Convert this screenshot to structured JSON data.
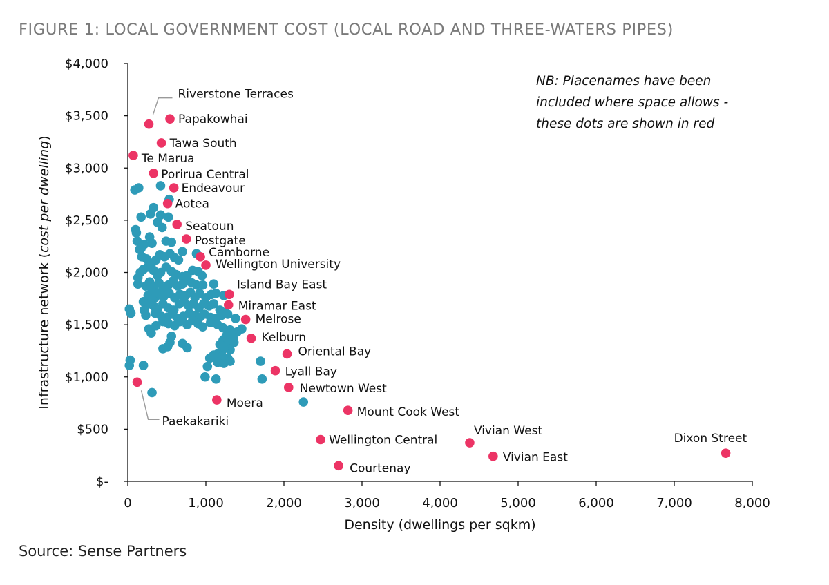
{
  "figure_title": "FIGURE 1: LOCAL GOVERNMENT COST (LOCAL ROAD AND THREE-WATERS PIPES)",
  "source": "Source: Sense Partners",
  "colors": {
    "teal": "#2e9bb8",
    "red": "#ec3465",
    "axis": "#111111",
    "leader": "#9a9a9a",
    "title": "#7a7a7a"
  },
  "chart_data": {
    "type": "scatter",
    "xlabel": "Density (dwellings per sqkm)",
    "ylabel_prefix": "Infrastructure network (",
    "ylabel_italic": "cost per dwelling",
    "ylabel_suffix": ")",
    "xlim": [
      0,
      8000
    ],
    "ylim": [
      0,
      4000
    ],
    "x_ticks": [
      0,
      1000,
      2000,
      3000,
      4000,
      5000,
      6000,
      7000,
      8000
    ],
    "x_tick_labels": [
      "0",
      "1,000",
      "2,000",
      "3,000",
      "4,000",
      "5,000",
      "6,000",
      "7,000",
      "8,000"
    ],
    "y_ticks": [
      0,
      500,
      1000,
      1500,
      2000,
      2500,
      3000,
      3500,
      4000
    ],
    "y_tick_labels": [
      "$-",
      "$500",
      "$1,000",
      "$1,500",
      "$2,000",
      "$2,500",
      "$3,000",
      "$3,500",
      "$4,000"
    ],
    "annotation_lines": [
      "NB: Placenames have been",
      "included where space allows -",
      "these dots are shown in red"
    ],
    "labelled_points": [
      {
        "name": "Riverstone Terraces",
        "x": 270,
        "y": 3420,
        "leader": true
      },
      {
        "name": "Papakowhai",
        "x": 540,
        "y": 3470
      },
      {
        "name": "Tawa South",
        "x": 430,
        "y": 3240
      },
      {
        "name": "Te Marua",
        "x": 70,
        "y": 3120
      },
      {
        "name": "Porirua Central",
        "x": 330,
        "y": 2950
      },
      {
        "name": "Endeavour",
        "x": 590,
        "y": 2810
      },
      {
        "name": "Aotea",
        "x": 510,
        "y": 2660
      },
      {
        "name": "Seatoun",
        "x": 630,
        "y": 2460
      },
      {
        "name": "Postgate",
        "x": 750,
        "y": 2320
      },
      {
        "name": "Camborne",
        "x": 930,
        "y": 2150
      },
      {
        "name": "Wellington University",
        "x": 1000,
        "y": 2070
      },
      {
        "name": "Island Bay East",
        "x": 1300,
        "y": 1790
      },
      {
        "name": "Miramar East",
        "x": 1290,
        "y": 1690
      },
      {
        "name": "Melrose",
        "x": 1510,
        "y": 1550
      },
      {
        "name": "Kelburn",
        "x": 1580,
        "y": 1370
      },
      {
        "name": "Oriental Bay",
        "x": 2040,
        "y": 1220
      },
      {
        "name": "Lyall Bay",
        "x": 1890,
        "y": 1060
      },
      {
        "name": "Newtown West",
        "x": 2060,
        "y": 900
      },
      {
        "name": "Moera",
        "x": 1140,
        "y": 780
      },
      {
        "name": "Mount Cook West",
        "x": 2820,
        "y": 680
      },
      {
        "name": "Paekakariki",
        "x": 120,
        "y": 950,
        "leader": true
      },
      {
        "name": "Wellington Central",
        "x": 2470,
        "y": 400
      },
      {
        "name": "Vivian West",
        "x": 4380,
        "y": 370
      },
      {
        "name": "Vivian East",
        "x": 4680,
        "y": 240
      },
      {
        "name": "Courtenay",
        "x": 2700,
        "y": 150
      },
      {
        "name": "Dixon Street",
        "x": 7660,
        "y": 270
      }
    ],
    "other_points": [
      [
        20,
        1650
      ],
      [
        40,
        1610
      ],
      [
        30,
        1160
      ],
      [
        20,
        1110
      ],
      [
        200,
        1110
      ],
      [
        310,
        850
      ],
      [
        90,
        2790
      ],
      [
        140,
        2810
      ],
      [
        420,
        2830
      ],
      [
        530,
        2700
      ],
      [
        100,
        2410
      ],
      [
        110,
        2380
      ],
      [
        170,
        2530
      ],
      [
        120,
        2300
      ],
      [
        210,
        2270
      ],
      [
        280,
        2340
      ],
      [
        310,
        2280
      ],
      [
        330,
        2620
      ],
      [
        290,
        2560
      ],
      [
        420,
        2550
      ],
      [
        380,
        2480
      ],
      [
        440,
        2430
      ],
      [
        520,
        2530
      ],
      [
        490,
        2300
      ],
      [
        560,
        2290
      ],
      [
        700,
        2200
      ],
      [
        880,
        2180
      ],
      [
        150,
        2220
      ],
      [
        180,
        2150
      ],
      [
        240,
        2130
      ],
      [
        360,
        2120
      ],
      [
        410,
        2170
      ],
      [
        470,
        2150
      ],
      [
        540,
        2180
      ],
      [
        600,
        2140
      ],
      [
        650,
        2120
      ],
      [
        250,
        2050
      ],
      [
        200,
        2030
      ],
      [
        160,
        2000
      ],
      [
        300,
        2080
      ],
      [
        330,
        2020
      ],
      [
        380,
        1970
      ],
      [
        420,
        2000
      ],
      [
        490,
        2050
      ],
      [
        560,
        2010
      ],
      [
        620,
        1980
      ],
      [
        700,
        1960
      ],
      [
        760,
        1970
      ],
      [
        830,
        2020
      ],
      [
        900,
        2010
      ],
      [
        950,
        1970
      ],
      [
        130,
        1890
      ],
      [
        230,
        1870
      ],
      [
        280,
        1910
      ],
      [
        330,
        1860
      ],
      [
        400,
        1900
      ],
      [
        450,
        1850
      ],
      [
        520,
        1880
      ],
      [
        580,
        1920
      ],
      [
        640,
        1870
      ],
      [
        700,
        1890
      ],
      [
        760,
        1920
      ],
      [
        820,
        1900
      ],
      [
        880,
        1880
      ],
      [
        960,
        1880
      ],
      [
        1100,
        1890
      ],
      [
        310,
        1820
      ],
      [
        260,
        1780
      ],
      [
        350,
        1760
      ],
      [
        400,
        1800
      ],
      [
        460,
        1770
      ],
      [
        530,
        1800
      ],
      [
        600,
        1760
      ],
      [
        670,
        1790
      ],
      [
        740,
        1780
      ],
      [
        800,
        1810
      ],
      [
        860,
        1760
      ],
      [
        920,
        1800
      ],
      [
        1000,
        1760
      ],
      [
        1070,
        1790
      ],
      [
        1130,
        1800
      ],
      [
        1230,
        1780
      ],
      [
        200,
        1720
      ],
      [
        270,
        1700
      ],
      [
        330,
        1680
      ],
      [
        380,
        1650
      ],
      [
        450,
        1700
      ],
      [
        520,
        1660
      ],
      [
        590,
        1640
      ],
      [
        660,
        1700
      ],
      [
        720,
        1720
      ],
      [
        780,
        1680
      ],
      [
        840,
        1700
      ],
      [
        910,
        1660
      ],
      [
        970,
        1700
      ],
      [
        1040,
        1680
      ],
      [
        1100,
        1700
      ],
      [
        1180,
        1640
      ],
      [
        1250,
        1620
      ],
      [
        230,
        1590
      ],
      [
        350,
        1610
      ],
      [
        430,
        1580
      ],
      [
        500,
        1570
      ],
      [
        570,
        1600
      ],
      [
        640,
        1560
      ],
      [
        710,
        1580
      ],
      [
        790,
        1610
      ],
      [
        860,
        1590
      ],
      [
        920,
        1570
      ],
      [
        980,
        1600
      ],
      [
        1060,
        1570
      ],
      [
        1120,
        1560
      ],
      [
        1200,
        1590
      ],
      [
        1280,
        1600
      ],
      [
        1380,
        1560
      ],
      [
        450,
        1530
      ],
      [
        520,
        1510
      ],
      [
        600,
        1490
      ],
      [
        670,
        1530
      ],
      [
        760,
        1500
      ],
      [
        830,
        1540
      ],
      [
        900,
        1510
      ],
      [
        960,
        1480
      ],
      [
        1060,
        1520
      ],
      [
        1150,
        1500
      ],
      [
        1220,
        1470
      ],
      [
        1310,
        1450
      ],
      [
        1400,
        1430
      ],
      [
        1460,
        1460
      ],
      [
        1320,
        1420
      ],
      [
        1260,
        1390
      ],
      [
        1350,
        1370
      ],
      [
        1220,
        1350
      ],
      [
        1180,
        1310
      ],
      [
        1290,
        1320
      ],
      [
        1360,
        1330
      ],
      [
        1310,
        1260
      ],
      [
        1230,
        1270
      ],
      [
        1150,
        1220
      ],
      [
        1210,
        1200
      ],
      [
        1280,
        1180
      ],
      [
        1230,
        1130
      ],
      [
        1310,
        1150
      ],
      [
        1050,
        1180
      ],
      [
        1100,
        1210
      ],
      [
        1150,
        1140
      ],
      [
        1020,
        1100
      ],
      [
        990,
        1000
      ],
      [
        1130,
        980
      ],
      [
        700,
        1320
      ],
      [
        760,
        1280
      ],
      [
        560,
        1390
      ],
      [
        540,
        1330
      ],
      [
        510,
        1290
      ],
      [
        450,
        1270
      ],
      [
        270,
        1460
      ],
      [
        300,
        1420
      ],
      [
        360,
        1490
      ],
      [
        1700,
        1150
      ],
      [
        1720,
        980
      ],
      [
        2250,
        760
      ],
      [
        170,
        2230
      ],
      [
        130,
        1950
      ],
      [
        210,
        1640
      ]
    ]
  }
}
